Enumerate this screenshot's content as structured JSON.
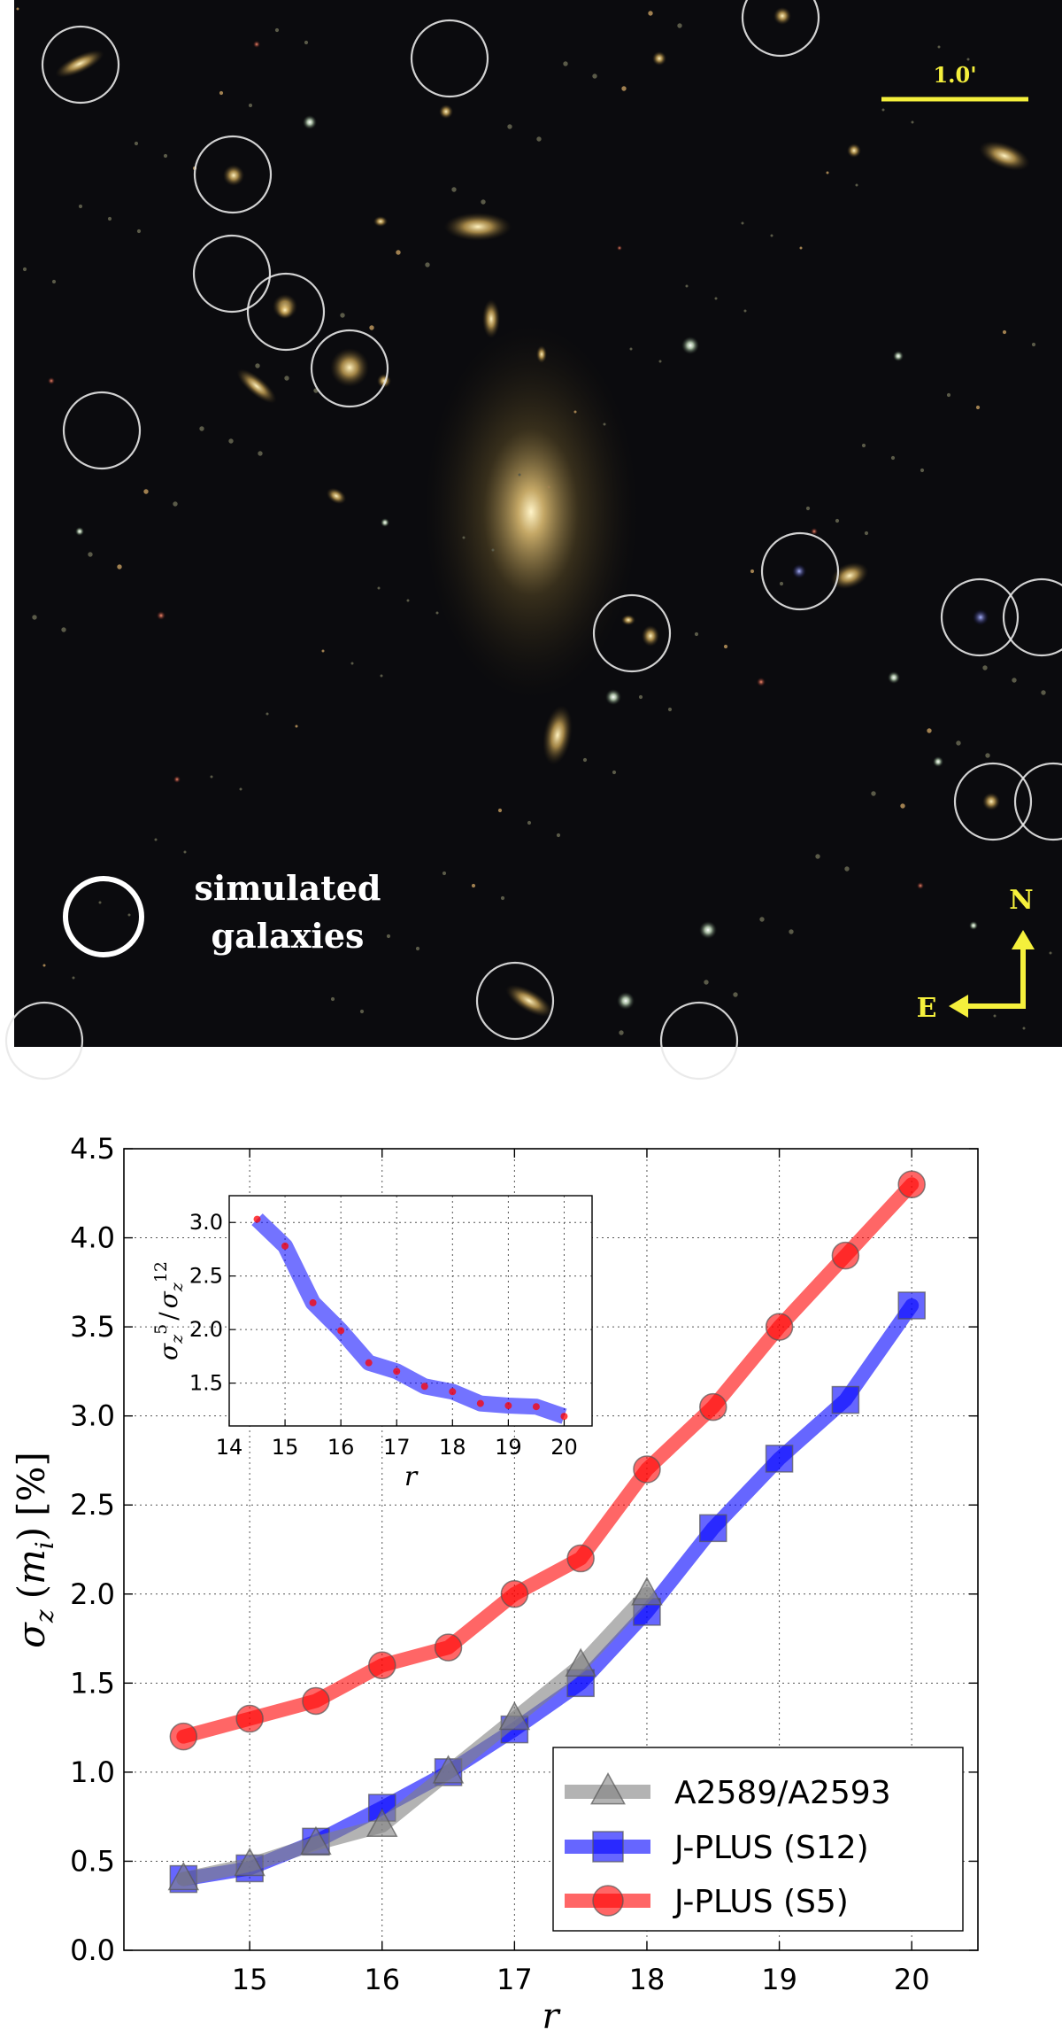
{
  "image_panel": {
    "scale_bar_label": "1.0'",
    "simulated_legend_line1": "simulated",
    "simulated_legend_line2": "galaxies",
    "compass_north": "N",
    "compass_east": "E",
    "scale_color": "#f5f03c",
    "circle_color": "#e8e8e8",
    "background_color": "#0b0b0e"
  },
  "chart_data": [
    {
      "type": "line",
      "xlabel": "r",
      "ylabel": "σ_z (m_i) [%]",
      "xlim": [
        14.05,
        20.5
      ],
      "ylim": [
        0.0,
        4.5
      ],
      "xticks": [
        15,
        16,
        17,
        18,
        19,
        20
      ],
      "yticks": [
        "0.0",
        "0.5",
        "1.0",
        "1.5",
        "2.0",
        "2.5",
        "3.0",
        "3.5",
        "4.0",
        "4.5"
      ],
      "grid": true,
      "legend_position": "bottom-right",
      "series": [
        {
          "name": "A2589/A2593",
          "marker": "triangle",
          "color": "#808080",
          "x": [
            14.5,
            15,
            15.5,
            16,
            16.5,
            17,
            17.5,
            18
          ],
          "y": [
            0.4,
            0.48,
            0.6,
            0.7,
            1.0,
            1.3,
            1.6,
            2.0
          ]
        },
        {
          "name": "J-PLUS (S12)",
          "marker": "square",
          "color": "#0000ff",
          "x": [
            14.5,
            15,
            15.5,
            16,
            16.5,
            17,
            17.5,
            18,
            18.5,
            19,
            19.5,
            20
          ],
          "y": [
            0.4,
            0.46,
            0.61,
            0.8,
            1.0,
            1.24,
            1.5,
            1.9,
            2.37,
            2.76,
            3.09,
            3.62
          ]
        },
        {
          "name": "J-PLUS  (S5)",
          "marker": "circle",
          "color": "#ff0000",
          "x": [
            14.5,
            15,
            15.5,
            16,
            16.5,
            17,
            17.5,
            18,
            18.5,
            19,
            19.5,
            20
          ],
          "y": [
            1.2,
            1.3,
            1.4,
            1.6,
            1.7,
            2.0,
            2.2,
            2.7,
            3.05,
            3.5,
            3.9,
            4.3
          ]
        }
      ]
    },
    {
      "type": "line",
      "role": "inset",
      "xlabel": "r",
      "ylabel": "σ_z^5 / σ_z^12",
      "xlim": [
        14,
        20.5
      ],
      "ylim": [
        1.1,
        3.25
      ],
      "xticks": [
        14,
        15,
        16,
        17,
        18,
        19,
        20
      ],
      "yticks": [
        "1.5",
        "2.0",
        "2.5",
        "3.0"
      ],
      "grid": true,
      "series": [
        {
          "color": "#0000ff",
          "point_color": "#ff0000",
          "x": [
            14.5,
            15,
            15.5,
            16,
            16.5,
            17,
            17.5,
            18,
            18.5,
            19,
            19.5,
            20
          ],
          "y": [
            3.03,
            2.78,
            2.25,
            1.99,
            1.69,
            1.61,
            1.47,
            1.42,
            1.31,
            1.29,
            1.28,
            1.19
          ]
        }
      ]
    }
  ]
}
